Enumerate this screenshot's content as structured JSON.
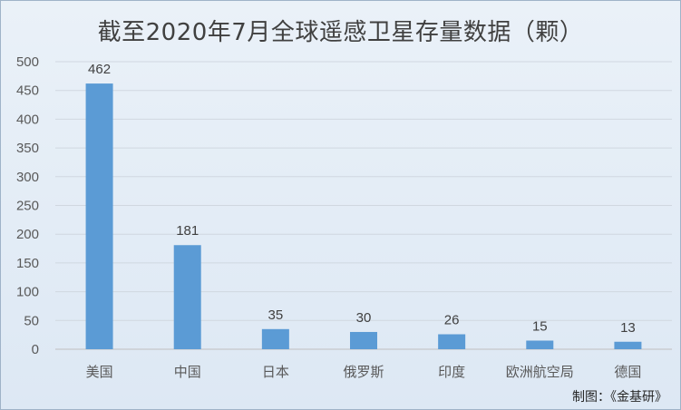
{
  "chart_data": {
    "type": "bar",
    "title": "截至2020年7月全球遥感卫星存量数据（颗）",
    "categories": [
      "美国",
      "中国",
      "日本",
      "俄罗斯",
      "印度",
      "欧洲航空局",
      "德国"
    ],
    "values": [
      462,
      181,
      35,
      30,
      26,
      15,
      13
    ],
    "ylim": [
      0,
      500
    ],
    "yticks": [
      0,
      50,
      100,
      150,
      200,
      250,
      300,
      350,
      400,
      450,
      500
    ],
    "xlabel": "",
    "ylabel": "",
    "grid": true,
    "bar_color": "#5b9bd5"
  },
  "source": "制图：《金基研》"
}
